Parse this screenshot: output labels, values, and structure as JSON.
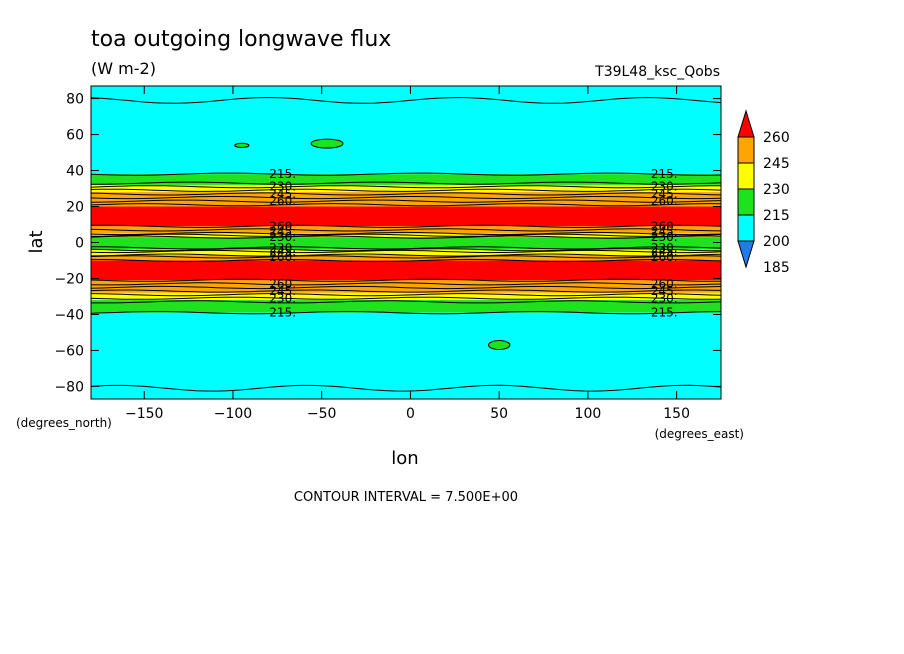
{
  "chart_data": {
    "type": "heatmap",
    "title": "toa outgoing longwave flux",
    "units": "(W m-2)",
    "run_label": "T39L48_ksc_Qobs",
    "xlabel": "lon",
    "ylabel": "lat",
    "x_units": "(degrees_east)",
    "y_units": "(degrees_north)",
    "xlim": [
      -180,
      175
    ],
    "ylim": [
      -87,
      87
    ],
    "x_ticks": [
      -150,
      -100,
      -50,
      0,
      50,
      100,
      150
    ],
    "y_ticks": [
      80,
      60,
      40,
      20,
      0,
      -20,
      -40,
      -60,
      -80
    ],
    "contour_interval_text": "CONTOUR INTERVAL = 7.500E+00",
    "colorbar": {
      "levels": [
        185,
        200,
        215,
        230,
        245,
        260
      ],
      "colors": [
        "#1e7de8",
        "#00ffff",
        "#1ee21e",
        "#ffff00",
        "#ffa500",
        "#ff0000"
      ]
    },
    "bands": [
      {
        "lat_from": 87,
        "lat_to": 38,
        "color": "#00ffff"
      },
      {
        "lat_from": 38,
        "lat_to": 32,
        "color": "#1ee21e"
      },
      {
        "lat_from": 32,
        "lat_to": 28,
        "color": "#ffff00"
      },
      {
        "lat_from": 28,
        "lat_to": 20,
        "color": "#ffa500"
      },
      {
        "lat_from": 20,
        "lat_to": 9,
        "color": "#ff0000"
      },
      {
        "lat_from": 9,
        "lat_to": 5,
        "color": "#ffa500"
      },
      {
        "lat_from": 5,
        "lat_to": 3,
        "color": "#ffff00"
      },
      {
        "lat_from": 3,
        "lat_to": -4,
        "color": "#1ee21e"
      },
      {
        "lat_from": -4,
        "lat_to": -7,
        "color": "#ffff00"
      },
      {
        "lat_from": -7,
        "lat_to": -10,
        "color": "#ffa500"
      },
      {
        "lat_from": -10,
        "lat_to": -21,
        "color": "#ff0000"
      },
      {
        "lat_from": -21,
        "lat_to": -28,
        "color": "#ffa500"
      },
      {
        "lat_from": -28,
        "lat_to": -32,
        "color": "#ffff00"
      },
      {
        "lat_from": -32,
        "lat_to": -39,
        "color": "#1ee21e"
      },
      {
        "lat_from": -39,
        "lat_to": -87,
        "color": "#00ffff"
      }
    ],
    "contour_lines_lat": [
      79,
      38,
      33,
      31,
      29,
      27,
      25,
      23,
      21,
      9,
      7,
      5,
      4,
      3,
      -3,
      -4,
      -5,
      -7,
      -8,
      -10,
      -21,
      -23,
      -25,
      -27,
      -29,
      -31,
      -33,
      -39,
      -81
    ],
    "contour_labels": [
      {
        "text": "215.",
        "lat": 38
      },
      {
        "text": "230.",
        "lat": 31
      },
      {
        "text": "245.",
        "lat": 27
      },
      {
        "text": "260.",
        "lat": 23
      },
      {
        "text": "260.",
        "lat": 9
      },
      {
        "text": "245.",
        "lat": 6
      },
      {
        "text": "230.",
        "lat": 3
      },
      {
        "text": "230.",
        "lat": -3
      },
      {
        "text": "245.",
        "lat": -5
      },
      {
        "text": "260.",
        "lat": -8
      },
      {
        "text": "260.",
        "lat": -23
      },
      {
        "text": "245.",
        "lat": -27
      },
      {
        "text": "230.",
        "lat": -31
      },
      {
        "text": "215.",
        "lat": -39
      }
    ],
    "label_lons": [
      -72,
      143
    ],
    "islands": [
      {
        "lon": -95,
        "lat": 54,
        "dlon": 4,
        "dlat": 1.2
      },
      {
        "lon": -47,
        "lat": 55,
        "dlon": 9,
        "dlat": 2.5
      },
      {
        "lon": 50,
        "lat": -57,
        "dlon": 6,
        "dlat": 2.5
      }
    ]
  }
}
